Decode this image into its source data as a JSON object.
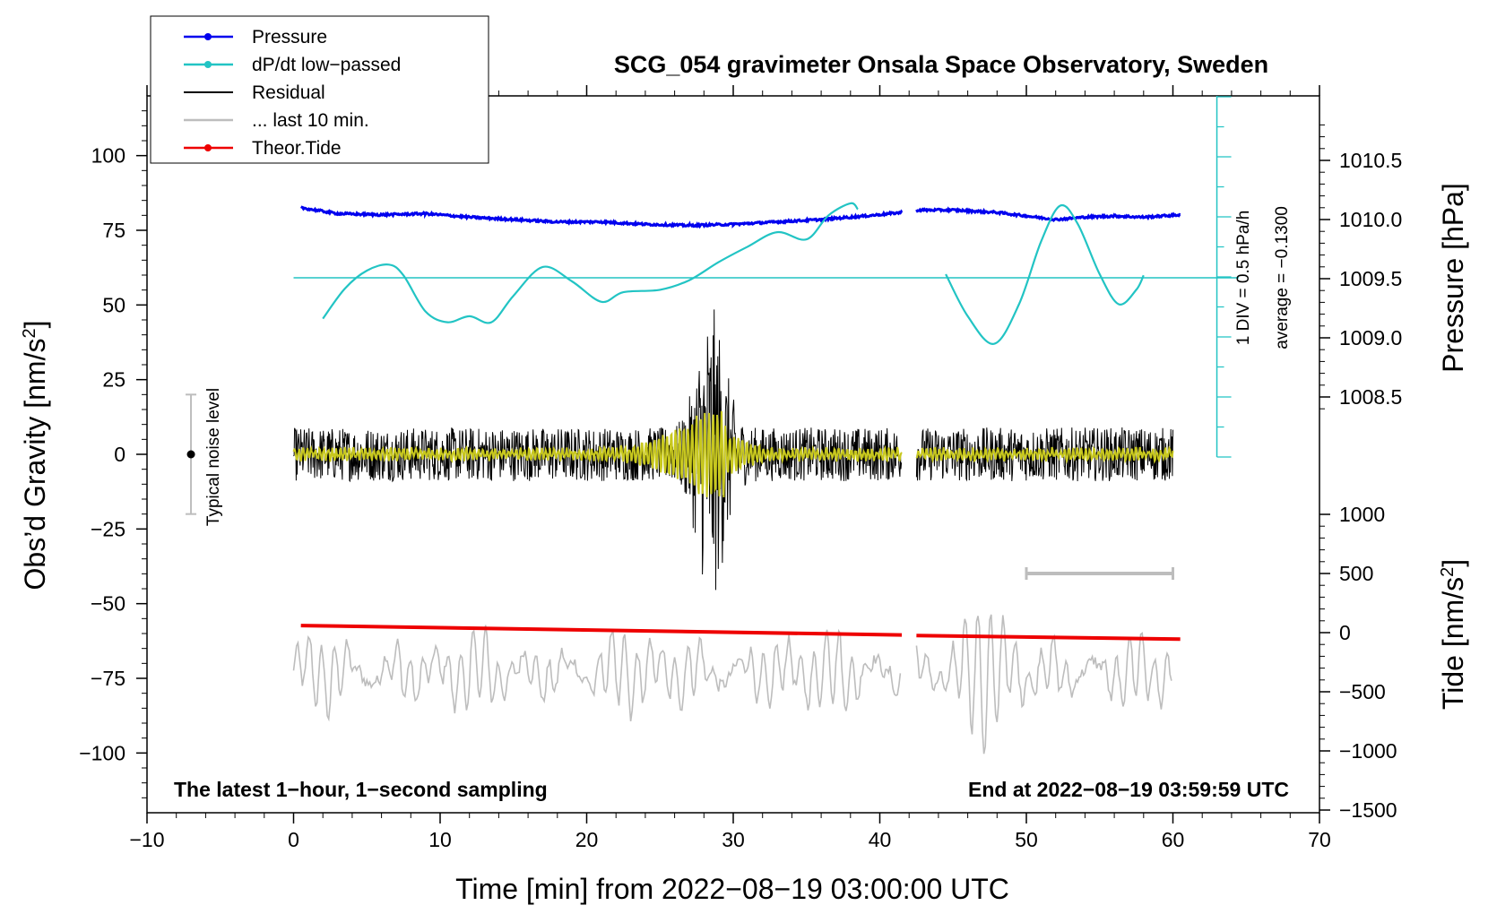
{
  "chart_data": {
    "type": "line",
    "title": "SCG_054 gravimeter Onsala Space Observatory, Sweden",
    "xlabel": "Time [min] from 2022−08−19 03:00:00 UTC",
    "ylabel_prefix": "Obs’d Gravity [nm/s",
    "ylabel_sup": "2",
    "ylabel_suffix": "]",
    "y2label": "Pressure [hPa]",
    "y3label_prefix": "Tide [nm/s",
    "y3label_sup": "2",
    "y3label_suffix": "]",
    "xlim": [
      -10,
      70
    ],
    "ylim": [
      -120,
      120
    ],
    "x_ticks": [
      "−10",
      "0",
      "10",
      "20",
      "30",
      "40",
      "50",
      "60",
      "70"
    ],
    "y_ticks": [
      "100",
      "75",
      "50",
      "25",
      "0",
      "−25",
      "−50",
      "−75",
      "−100"
    ],
    "pressure_ticks": [
      "1010.5",
      "1010.0",
      "1009.5",
      "1009.0",
      "1008.5"
    ],
    "tide_ticks": [
      "1000",
      "500",
      "0",
      "−500",
      "−1000",
      "−1500"
    ],
    "legend": [
      {
        "label": "Pressure",
        "color": "#0000ee",
        "marker": true
      },
      {
        "label": "dP/dt low−passed",
        "color": "#22c4c4",
        "marker": true
      },
      {
        "label": "Residual",
        "color": "#000000",
        "marker": false
      },
      {
        "label": "... last 10 min.",
        "color": "#bdbdbd",
        "marker": false
      },
      {
        "label": "Theor.Tide",
        "color": "#ee0000",
        "marker": true
      }
    ],
    "colors": {
      "pressure": "#0000ee",
      "dpdt": "#22c4c4",
      "residual": "#000000",
      "residual_filtered": "#c8c81e",
      "last10": "#bdbdbd",
      "tide": "#ee0000",
      "noise": "#bdbdbd"
    },
    "series": [
      {
        "name": "Pressure",
        "unit": "hPa",
        "x": [
          0.5,
          3,
          6,
          9,
          12,
          15,
          18,
          21,
          24,
          27,
          30,
          33,
          36,
          39,
          41.5
        ],
        "y": [
          1010.1,
          1010.05,
          1010.04,
          1010.05,
          1010.02,
          1010.0,
          1009.98,
          1009.98,
          1009.96,
          1009.95,
          1009.96,
          1009.98,
          1010.0,
          1010.03,
          1010.06
        ]
      },
      {
        "name": "Pressure (after gap)",
        "unit": "hPa",
        "x": [
          42.5,
          45,
          48,
          50,
          52,
          54,
          56,
          58,
          60.5
        ],
        "y": [
          1010.08,
          1010.08,
          1010.06,
          1010.03,
          1010.0,
          1010.02,
          1010.03,
          1010.02,
          1010.04
        ]
      },
      {
        "name": "dP/dt low-passed",
        "unit": "hPa/h",
        "x": [
          2,
          3.5,
          5,
          6.5,
          7.5,
          9,
          10.5,
          12,
          13.5,
          15,
          17,
          19,
          21,
          22.5,
          25,
          27,
          29,
          31,
          33,
          35,
          36.5,
          38,
          38.5
        ],
        "y": [
          -0.34,
          -0.09,
          0.06,
          0.11,
          0.02,
          -0.28,
          -0.37,
          -0.32,
          -0.37,
          -0.15,
          0.09,
          -0.03,
          -0.2,
          -0.12,
          -0.1,
          -0.02,
          0.13,
          0.26,
          0.38,
          0.32,
          0.52,
          0.62,
          0.57
        ]
      },
      {
        "name": "dP/dt low-passed (after gap)",
        "unit": "hPa/h",
        "x": [
          44.5,
          46,
          47.8,
          49.5,
          51,
          52.3,
          53.5,
          55,
          56.3,
          57.5,
          58
        ],
        "y": [
          0.03,
          -0.32,
          -0.55,
          -0.22,
          0.3,
          0.6,
          0.45,
          0.03,
          -0.22,
          -0.1,
          0.02
        ]
      },
      {
        "name": "Theor.Tide",
        "unit": "nm/s2",
        "x": [
          0.5,
          41.5,
          42.5,
          60.5
        ],
        "y": [
          60,
          -20,
          -25,
          -55
        ]
      }
    ],
    "residual": {
      "name": "Residual",
      "unit": "nm/s2",
      "ranges": [
        [
          0,
          41.5
        ],
        [
          42.5,
          60
        ]
      ],
      "typical_amplitude": 9,
      "burst_center_min": 28.5,
      "burst_peak_abs": 50
    },
    "last_10_min": {
      "name": "... last 10 min.",
      "center_nm_s2": -73,
      "typical_amplitude": 12,
      "ranges": [
        [
          0,
          41.5
        ],
        [
          42.5,
          60
        ]
      ]
    },
    "pressure_scale": {
      "label": "1 DIV = 0.5 hPa/h",
      "average_label": "average = −0.1300",
      "average_hpa_h": -0.13
    },
    "noise_bar": {
      "label": "Typical noise level",
      "x_min": -7,
      "ymin": -20,
      "ymax": 20
    },
    "last10_scale_bar": {
      "x_start": 50,
      "x_end": 60
    },
    "annotations": {
      "bottom_left": "The latest 1−hour, 1−second sampling",
      "bottom_right": "End at 2022−08−19 03:59:59 UTC"
    }
  }
}
